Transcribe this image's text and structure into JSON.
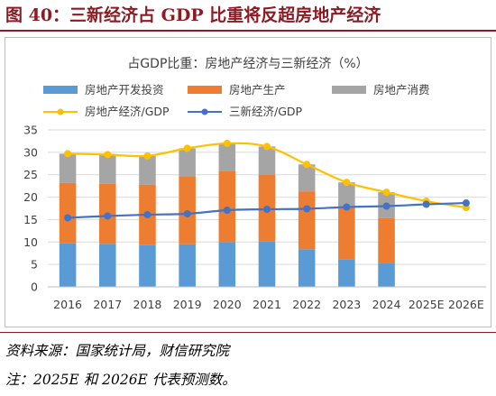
{
  "figure": {
    "title": "图 40：三新经济占 GDP 比重将反超房地产经济",
    "source_note": "资料来源：国家统计局，财信研究院",
    "footnote": "注：2025E 和 2026E 代表预测数。"
  },
  "chart_data": {
    "type": "bar",
    "title": "占GDP比重：房地产经济与三新经济（%）",
    "stacked": true,
    "categories": [
      "2016",
      "2017",
      "2018",
      "2019",
      "2020",
      "2021",
      "2022",
      "2023",
      "2024",
      "2025E",
      "2026E"
    ],
    "series": [
      {
        "name": "房地产开发投资",
        "kind": "bar",
        "color": "#5b9bd5",
        "values": [
          9.7,
          9.6,
          9.3,
          9.5,
          10.0,
          10.1,
          8.4,
          6.2,
          5.4,
          null,
          null
        ]
      },
      {
        "name": "房地产生产",
        "kind": "bar",
        "color": "#ed7d31",
        "values": [
          13.5,
          13.4,
          13.5,
          15.2,
          15.9,
          15.0,
          12.9,
          11.4,
          9.9,
          null,
          null
        ]
      },
      {
        "name": "房地产消费",
        "kind": "bar",
        "color": "#a5a5a5",
        "values": [
          6.5,
          6.5,
          6.4,
          6.2,
          6.1,
          6.2,
          6.0,
          5.7,
          5.8,
          null,
          null
        ]
      },
      {
        "name": "房地产经济/GDP",
        "kind": "line",
        "color": "#ffc000",
        "values": [
          29.7,
          29.5,
          29.2,
          30.9,
          32.0,
          31.3,
          27.3,
          23.3,
          21.1,
          19.1,
          17.7
        ]
      },
      {
        "name": "三新经济/GDP",
        "kind": "line",
        "color": "#4472c4",
        "values": [
          15.4,
          15.8,
          16.1,
          16.3,
          17.1,
          17.3,
          17.4,
          17.8,
          18.0,
          18.4,
          18.7
        ]
      }
    ],
    "ylim": [
      0,
      35
    ],
    "yticks": [
      "0",
      "5",
      "10",
      "15",
      "20",
      "25",
      "30",
      "35"
    ],
    "grid": true,
    "legend": "top"
  }
}
